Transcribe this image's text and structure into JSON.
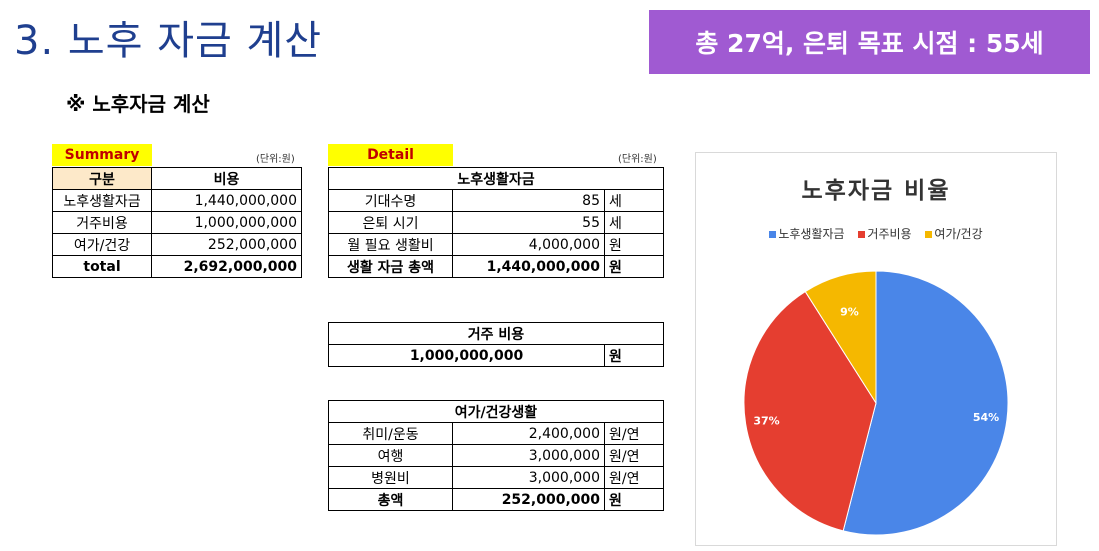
{
  "header": {
    "title": "3. 노후 자금 계산",
    "banner": "총 27억, 은퇴 목표 시점  : 55세",
    "subtitle": "※ 노후자금 계산"
  },
  "summary": {
    "label": "Summary",
    "unit": "(단위:원)",
    "col1": "구분",
    "col2": "비용",
    "rows": [
      {
        "name": "노후생활자금",
        "value": "1,440,000,000"
      },
      {
        "name": "거주비용",
        "value": "1,000,000,000"
      },
      {
        "name": "여가/건강",
        "value": "252,000,000"
      }
    ],
    "total_label": "total",
    "total_value": "2,692,000,000"
  },
  "detail": {
    "label": "Detail",
    "unit": "(단위:원)",
    "living": {
      "header": "노후생활자금",
      "rows": [
        {
          "name": "기대수명",
          "value": "85",
          "unit": "세"
        },
        {
          "name": "은퇴 시기",
          "value": "55",
          "unit": "세"
        },
        {
          "name": "월 필요 생활비",
          "value": "4,000,000",
          "unit": "원"
        }
      ],
      "total_label": "생활 자금 총액",
      "total_value": "1,440,000,000",
      "total_unit": "원"
    },
    "housing": {
      "header": "거주 비용",
      "value": "1,000,000,000",
      "unit": "원"
    },
    "leisure": {
      "header": "여가/건강생활",
      "rows": [
        {
          "name": "취미/운동",
          "value": "2,400,000",
          "unit": "원/연"
        },
        {
          "name": "여행",
          "value": "3,000,000",
          "unit": "원/연"
        },
        {
          "name": "병원비",
          "value": "3,000,000",
          "unit": "원/연"
        }
      ],
      "total_label": "총액",
      "total_value": "252,000,000",
      "total_unit": "원"
    }
  },
  "chart_data": {
    "type": "pie",
    "title": "노후자금 비율",
    "categories": [
      "노후생활자금",
      "거주비용",
      "여가/건강"
    ],
    "values": [
      54,
      37,
      9
    ],
    "labels": [
      "54%",
      "37%",
      "9%"
    ],
    "colors": [
      "#4a86e8",
      "#e53e30",
      "#f5b800"
    ],
    "legend": "top"
  }
}
